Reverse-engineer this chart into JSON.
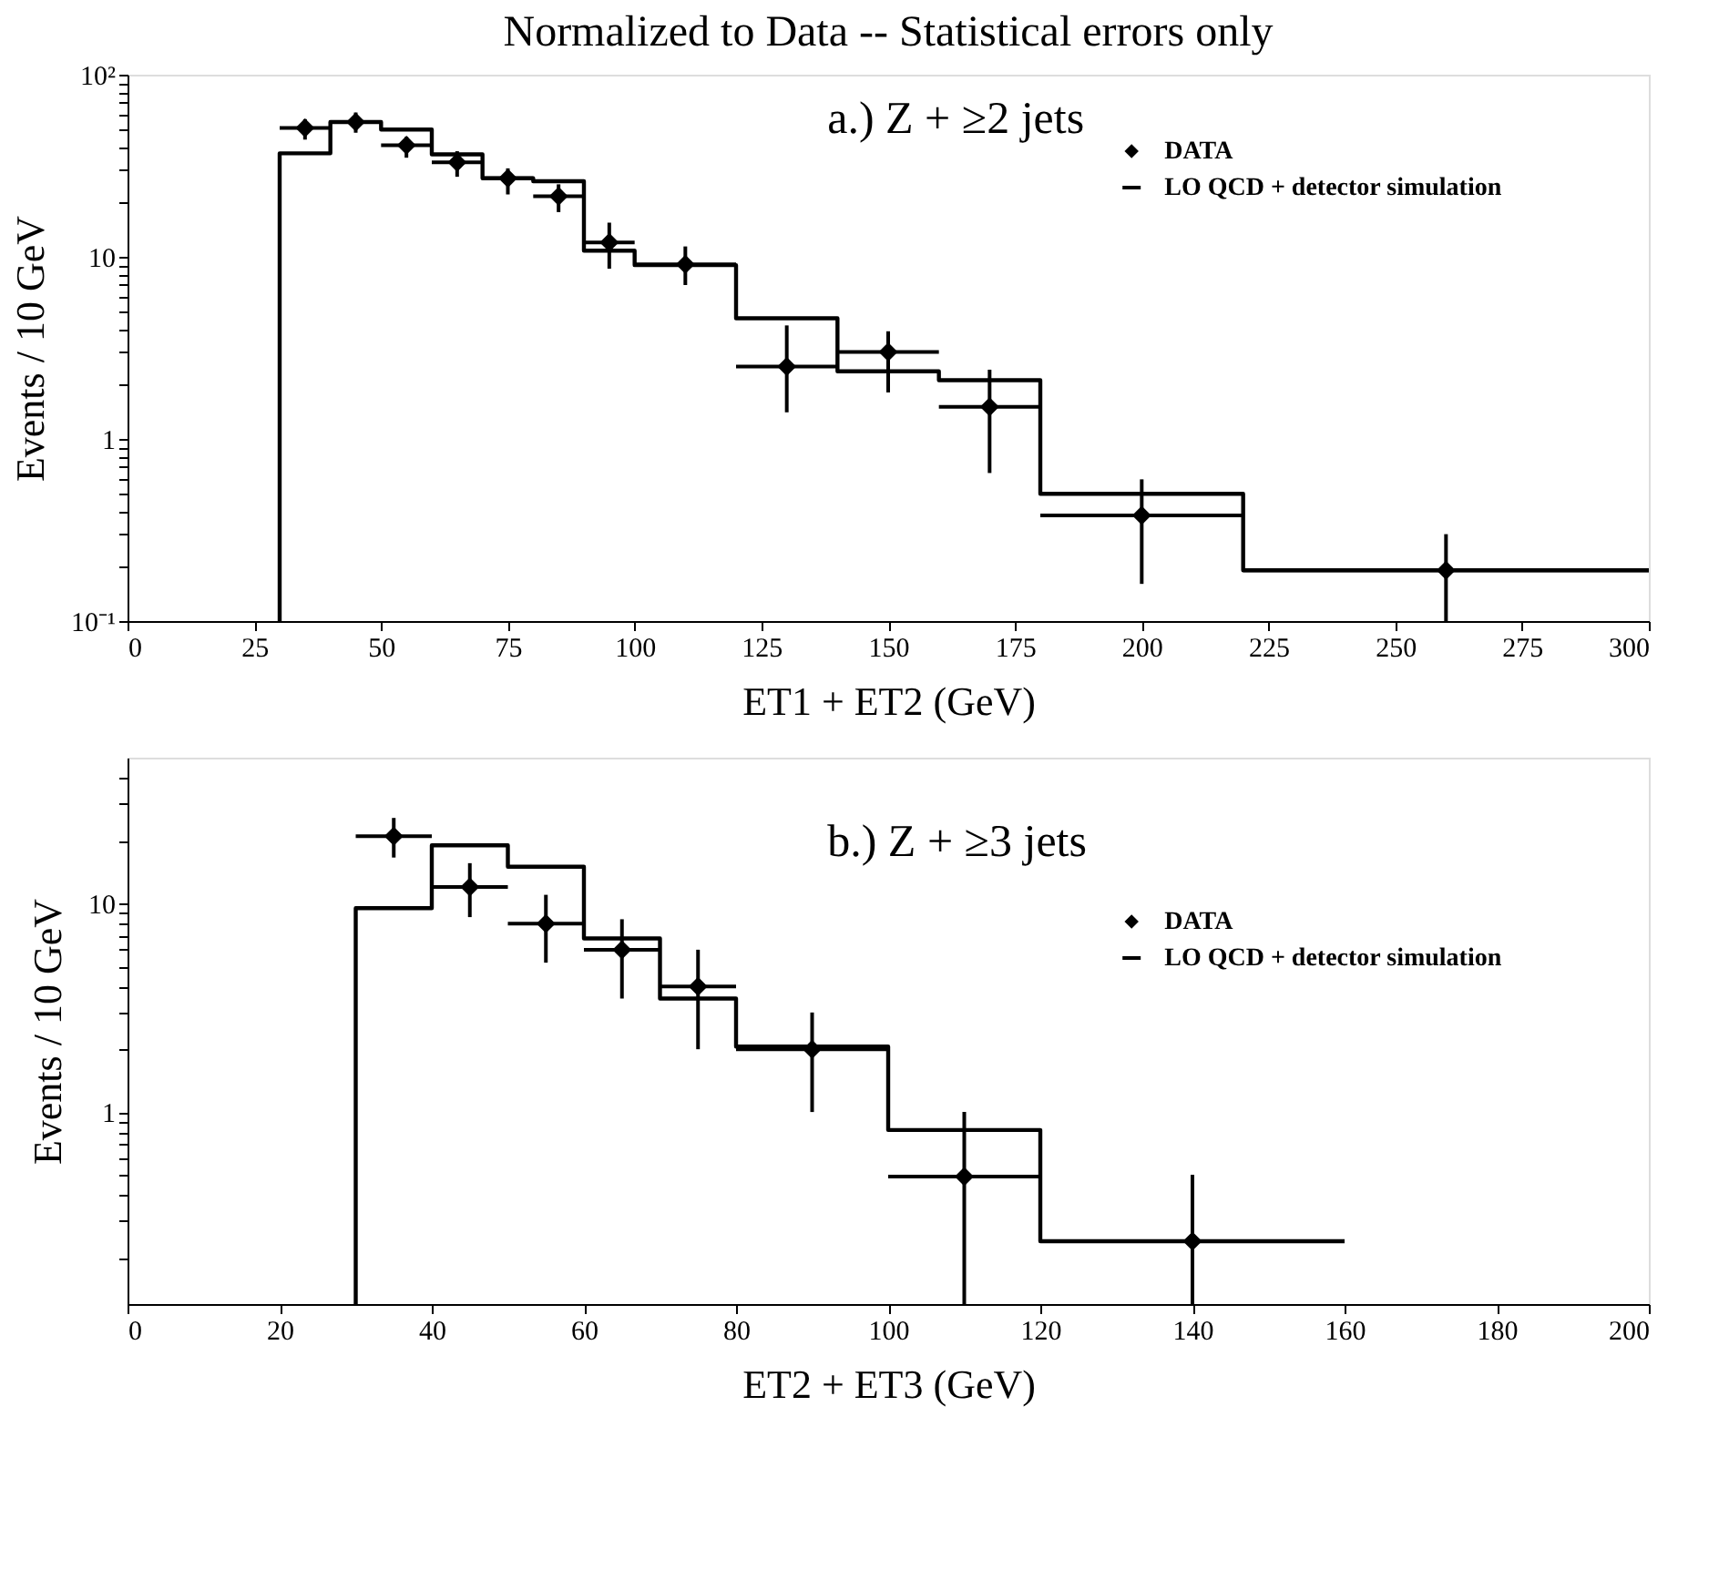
{
  "chart_data": [
    {
      "type": "histogram",
      "title": "Normalized to Data -- Statistical errors only",
      "xlabel": "ET1 + ET2 (GeV)",
      "ylabel": "Events / 10 GeV",
      "annotations": [
        "a.) Z + ≥2 jets"
      ],
      "xlim": [
        0,
        300
      ],
      "xticks": [
        0,
        25,
        50,
        75,
        100,
        125,
        150,
        175,
        200,
        225,
        250,
        275,
        300
      ],
      "ylim": [
        0.1,
        100
      ],
      "log": true,
      "legend": "top right",
      "yticks": [
        {
          "value": 0.1,
          "label": "10⁻¹"
        },
        {
          "value": 0.2,
          "label": null
        },
        {
          "value": 0.3,
          "label": null
        },
        {
          "value": 0.4,
          "label": null
        },
        {
          "value": 0.5,
          "label": null
        },
        {
          "value": 0.6,
          "label": null
        },
        {
          "value": 0.7,
          "label": null
        },
        {
          "value": 0.8,
          "label": null
        },
        {
          "value": 0.9,
          "label": null
        },
        1,
        {
          "value": 2,
          "label": null
        },
        {
          "value": 3,
          "label": null
        },
        {
          "value": 4,
          "label": null
        },
        {
          "value": 5,
          "label": null
        },
        {
          "value": 6,
          "label": null
        },
        {
          "value": 7,
          "label": null
        },
        {
          "value": 8,
          "label": null
        },
        {
          "value": 9,
          "label": null
        },
        10,
        {
          "value": 20,
          "label": null
        },
        {
          "value": 30,
          "label": null
        },
        {
          "value": 40,
          "label": null
        },
        {
          "value": 50,
          "label": null
        },
        {
          "value": 60,
          "label": null
        },
        {
          "value": 70,
          "label": null
        },
        {
          "value": 80,
          "label": null
        },
        {
          "value": 90,
          "label": null
        },
        {
          "value": 100,
          "label": "10²"
        }
      ],
      "series": [
        {
          "name": "DATA",
          "type": "scatter",
          "marker": "diamond",
          "color": "#000000",
          "x": [
            35,
            45,
            55,
            65,
            75,
            85,
            95,
            110,
            130,
            150,
            170,
            200,
            260
          ],
          "values": [
            51,
            55,
            41,
            33,
            27,
            21.5,
            12,
            9.1,
            2.5,
            3.0,
            1.5,
            0.38,
            0.19
          ],
          "errors": [
            [
              44,
              57
            ],
            [
              48,
              62
            ],
            [
              35,
              45.5
            ],
            [
              27.5,
              38
            ],
            [
              22,
              30.6
            ],
            [
              17.6,
              25
            ],
            [
              8.6,
              15.4
            ],
            [
              7.0,
              11.4
            ],
            [
              1.4,
              4.2
            ],
            [
              1.8,
              3.9
            ],
            [
              0.65,
              2.4
            ],
            [
              0.16,
              0.6
            ],
            [
              0.1,
              0.3
            ]
          ],
          "xerrors": [
            5,
            5,
            5,
            5,
            5,
            5,
            5,
            10,
            10,
            10,
            10,
            20,
            40
          ]
        },
        {
          "name": "LO QCD + detector simulation",
          "color": "#000000",
          "bins": [
            30,
            40,
            50,
            60,
            70,
            80,
            90,
            100,
            120,
            140,
            160,
            180,
            220,
            300
          ],
          "values": [
            37,
            55,
            50,
            36.5,
            27,
            26,
            10.8,
            9.0,
            4.6,
            2.35,
            2.1,
            0.5,
            0.19
          ]
        }
      ]
    },
    {
      "type": "histogram",
      "xlabel": "ET2 + ET3 (GeV)",
      "ylabel": "Events / 10 GeV",
      "annotations": [
        "b.) Z + ≥3 jets"
      ],
      "xlim": [
        0,
        200
      ],
      "xticks": [
        0,
        20,
        40,
        60,
        80,
        100,
        120,
        140,
        160,
        180,
        200
      ],
      "ylim": [
        0.12,
        50
      ],
      "log": true,
      "legend": "right",
      "yticks": [
        {
          "value": 0.2,
          "label": null
        },
        {
          "value": 0.3,
          "label": null
        },
        {
          "value": 0.4,
          "label": null
        },
        {
          "value": 0.5,
          "label": null
        },
        {
          "value": 0.6,
          "label": null
        },
        {
          "value": 0.7,
          "label": null
        },
        {
          "value": 0.8,
          "label": null
        },
        {
          "value": 0.9,
          "label": null
        },
        1,
        {
          "value": 2,
          "label": null
        },
        {
          "value": 3,
          "label": null
        },
        {
          "value": 4,
          "label": null
        },
        {
          "value": 5,
          "label": null
        },
        {
          "value": 6,
          "label": null
        },
        {
          "value": 7,
          "label": null
        },
        {
          "value": 8,
          "label": null
        },
        {
          "value": 9,
          "label": null
        },
        10,
        {
          "value": 20,
          "label": null
        },
        {
          "value": 30,
          "label": null
        },
        {
          "value": 40,
          "label": null
        }
      ],
      "series": [
        {
          "name": "DATA",
          "type": "scatter",
          "marker": "diamond",
          "color": "#000000",
          "x": [
            35,
            45,
            55,
            65,
            75,
            90,
            110,
            140
          ],
          "values": [
            21,
            12,
            8,
            6,
            4,
            2,
            0.49,
            0.24
          ],
          "errors": [
            [
              16.6,
              25.7
            ],
            [
              8.6,
              15.6
            ],
            [
              5.2,
              11
            ],
            [
              3.5,
              8.4
            ],
            [
              2.0,
              6.0
            ],
            [
              1.0,
              3.0
            ],
            [
              0.12,
              1.0
            ],
            [
              0.12,
              0.5
            ]
          ],
          "xerrors": [
            5,
            5,
            5,
            5,
            5,
            10,
            10,
            20
          ]
        },
        {
          "name": "LO QCD + detector simulation",
          "color": "#000000",
          "bins": [
            30,
            40,
            50,
            60,
            70,
            80,
            100,
            120,
            160
          ],
          "values": [
            9.5,
            19,
            15,
            6.8,
            3.5,
            2.06,
            0.82,
            0.24
          ]
        }
      ]
    }
  ]
}
